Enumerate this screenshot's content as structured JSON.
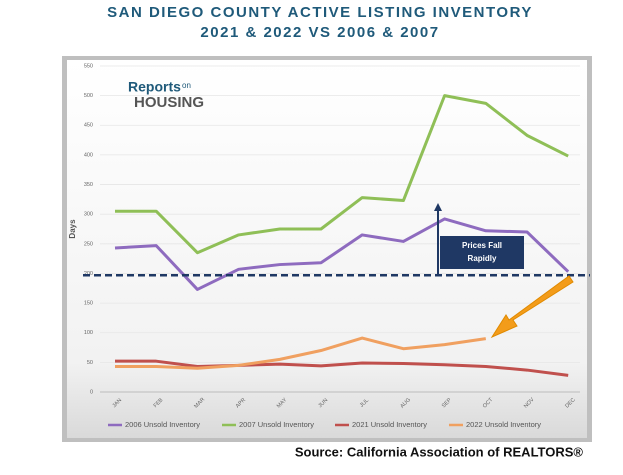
{
  "chart_data": {
    "type": "line",
    "title": [
      "SAN DIEGO COUNTY ACTIVE LISTING INVENTORY",
      "2021 & 2022 VS 2006 & 2007"
    ],
    "y_label": "Days",
    "categories": [
      "JAN",
      "FEB",
      "MAR",
      "APR",
      "MAY",
      "JUN",
      "JUL",
      "AUG",
      "SEP",
      "OCT",
      "NOV",
      "DEC"
    ],
    "series": [
      {
        "name": "2006 Unsold Inventory",
        "color": "#8e6bbf",
        "values": [
          243,
          247,
          173,
          207,
          215,
          218,
          265,
          254,
          292,
          272,
          270,
          203
        ]
      },
      {
        "name": "2007 Unsold Inventory",
        "color": "#8fbf57",
        "values": [
          305,
          305,
          235,
          265,
          275,
          275,
          328,
          323,
          500,
          487,
          433,
          398
        ]
      },
      {
        "name": "2021 Unsold Inventory",
        "color": "#c0504d",
        "values": [
          52,
          52,
          43,
          45,
          47,
          44,
          49,
          48,
          46,
          43,
          37,
          28
        ]
      },
      {
        "name": "2022 Unsold Inventory",
        "color": "#f0a060",
        "values": [
          43,
          43,
          40,
          45,
          55,
          70,
          91,
          73,
          80,
          90,
          null,
          null
        ]
      }
    ],
    "ylim": [
      0,
      550
    ],
    "yticks": [
      0,
      50,
      100,
      150,
      200,
      250,
      300,
      350,
      400,
      450,
      500,
      550
    ],
    "reference_line": 197,
    "annotation": [
      "Prices Fall",
      "Rapidly"
    ],
    "legend": "bottom"
  },
  "logo": [
    "Reports",
    "on",
    "HOUSING"
  ],
  "source": "Source: California Association of REALTORS®"
}
